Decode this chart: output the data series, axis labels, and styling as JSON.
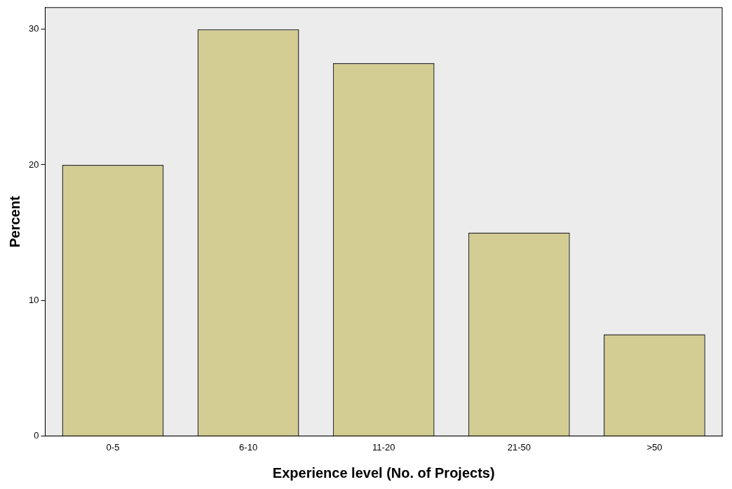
{
  "chart_data": {
    "type": "bar",
    "xlabel": "Experience level (No. of Projects)",
    "ylabel": "Percent",
    "categories": [
      "0-5",
      "6-10",
      "11-20",
      "21-50",
      ">50"
    ],
    "values": [
      20,
      30,
      27.5,
      15,
      7.5
    ],
    "color": "#d3cd94",
    "ylim": [
      0,
      31.6
    ],
    "yticks": [
      0,
      10,
      20,
      30
    ],
    "grid": false,
    "legend": false
  }
}
